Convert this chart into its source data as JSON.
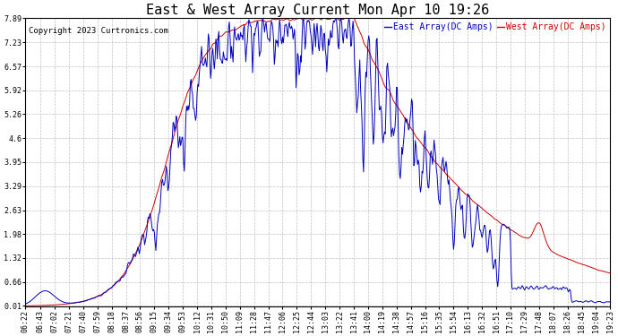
{
  "title": "East & West Array Current Mon Apr 10 19:26",
  "copyright": "Copyright 2023 Curtronics.com",
  "legend_east": "East Array(DC Amps)",
  "legend_west": "West Array(DC Amps)",
  "yticks": [
    0.01,
    0.66,
    1.32,
    1.98,
    2.63,
    3.29,
    3.95,
    4.6,
    5.26,
    5.92,
    6.57,
    7.23,
    7.89
  ],
  "ylim": [
    0.0,
    7.89
  ],
  "east_color": "#0000bb",
  "west_color": "#cc0000",
  "bg_color": "#ffffff",
  "grid_color": "#bbbbbb",
  "title_fontsize": 11,
  "legend_fontsize": 7,
  "tick_fontsize": 6,
  "copyright_fontsize": 6.5
}
